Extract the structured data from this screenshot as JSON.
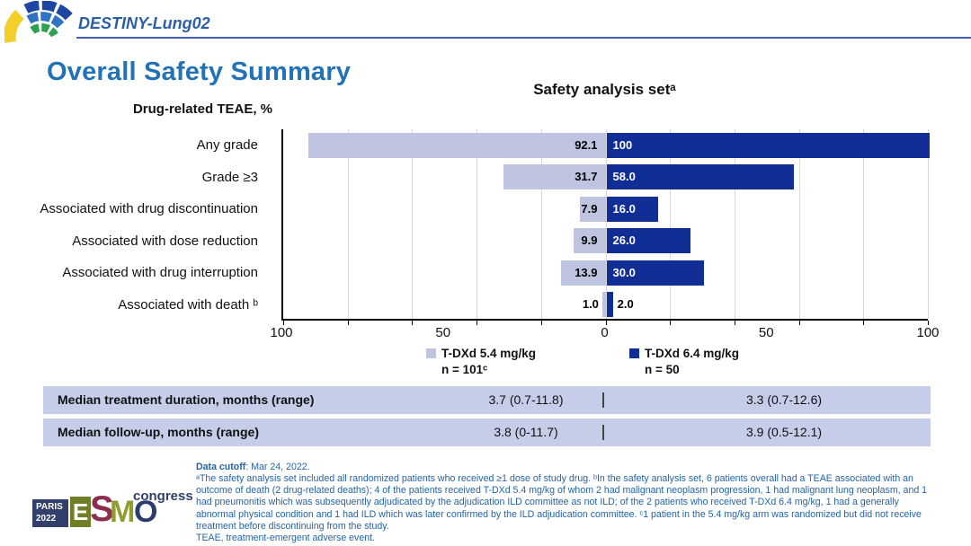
{
  "header": {
    "trial_name": "DESTINY-Lung02"
  },
  "slide_title": "Overall Safety Summary",
  "chart_data": {
    "type": "bar",
    "orientation": "horizontal-diverging",
    "title": "Safety analysis setᵃ",
    "axis_label": "Drug-related TEAE, %",
    "categories": [
      "Any grade",
      "Grade ≥3",
      "Associated with drug discontinuation",
      "Associated with dose reduction",
      "Associated with drug interruption",
      "Associated with death ᵇ"
    ],
    "series": [
      {
        "name": "T-DXd 5.4 mg/kg",
        "n_label": "n = 101ᶜ",
        "side": "left",
        "color": "#bfc5e1",
        "values": [
          92.1,
          31.7,
          7.9,
          9.9,
          13.9,
          1.0
        ],
        "value_labels": [
          "92.1",
          "31.7",
          "7.9",
          "9.9",
          "13.9",
          "1.0"
        ]
      },
      {
        "name": "T-DXd 6.4 mg/kg",
        "n_label": "n = 50",
        "side": "right",
        "color": "#112e96",
        "values": [
          100,
          58.0,
          16.0,
          26.0,
          30.0,
          2.0
        ],
        "value_labels": [
          "100",
          "58.0",
          "16.0",
          "26.0",
          "30.0",
          "2.0"
        ]
      }
    ],
    "xlim": [
      -100,
      100
    ],
    "x_tick_labels": [
      "100",
      "50",
      "0",
      "50",
      "100"
    ],
    "x_tick_positions_pct": [
      0,
      25,
      50,
      75,
      100
    ],
    "gridline_step_units": 20,
    "grid": true,
    "legend_position": "bottom-center"
  },
  "table": {
    "rows": [
      {
        "label": "Median treatment duration, months (range)",
        "v1": "3.7 (0.7-11.8)",
        "v2": "3.3 (0.7-12.6)"
      },
      {
        "label": "Median follow-up, months (range)",
        "v1": "3.8 (0-11.7)",
        "v2": "3.9 (0.5-12.1)"
      }
    ]
  },
  "footnotes": {
    "data_cutoff_label": "Data cutoff",
    "data_cutoff_rest": ": Mar 24, 2022.",
    "body": "ᵃThe safety analysis set included all randomized patients who received ≥1 dose of study drug. ᵇIn the safety analysis set, 6 patients overall had a TEAE associated with an outcome of death (2 drug-related deaths); 4 of the patients received T-DXd 5.4 mg/kg of whom 2 had malignant neoplasm progression, 1 had malignant lung neoplasm, and 1 had pneumonitis which was subsequently adjudicated by the adjudication ILD committee as not ILD; of the 2 patients who received T-DXd 6.4 mg/kg, 1 had a generally abnormal physical condition and 1 had ILD which was later confirmed by the ILD adjudication committee. ᶜ1 patient in the 5.4 mg/kg arm was randomized but did not receive treatment before discontinuing from the study.",
    "abbreviation": "TEAE, treatment-emergent adverse event."
  },
  "footer": {
    "paris_line1": "PARIS",
    "paris_line2": "2022",
    "letter_e": "E",
    "letter_s": "S",
    "letter_m": "M",
    "letter_o": "O",
    "congress": "congress"
  },
  "colors": {
    "title_blue": "#2272b8",
    "trial_blue": "#2b5fa6",
    "rule_blue": "#3f5fc0",
    "bar_light": "#bfc5e1",
    "bar_dark": "#112e96",
    "table_bg": "#c6cde8",
    "footnote_blue": "#2464a5"
  }
}
